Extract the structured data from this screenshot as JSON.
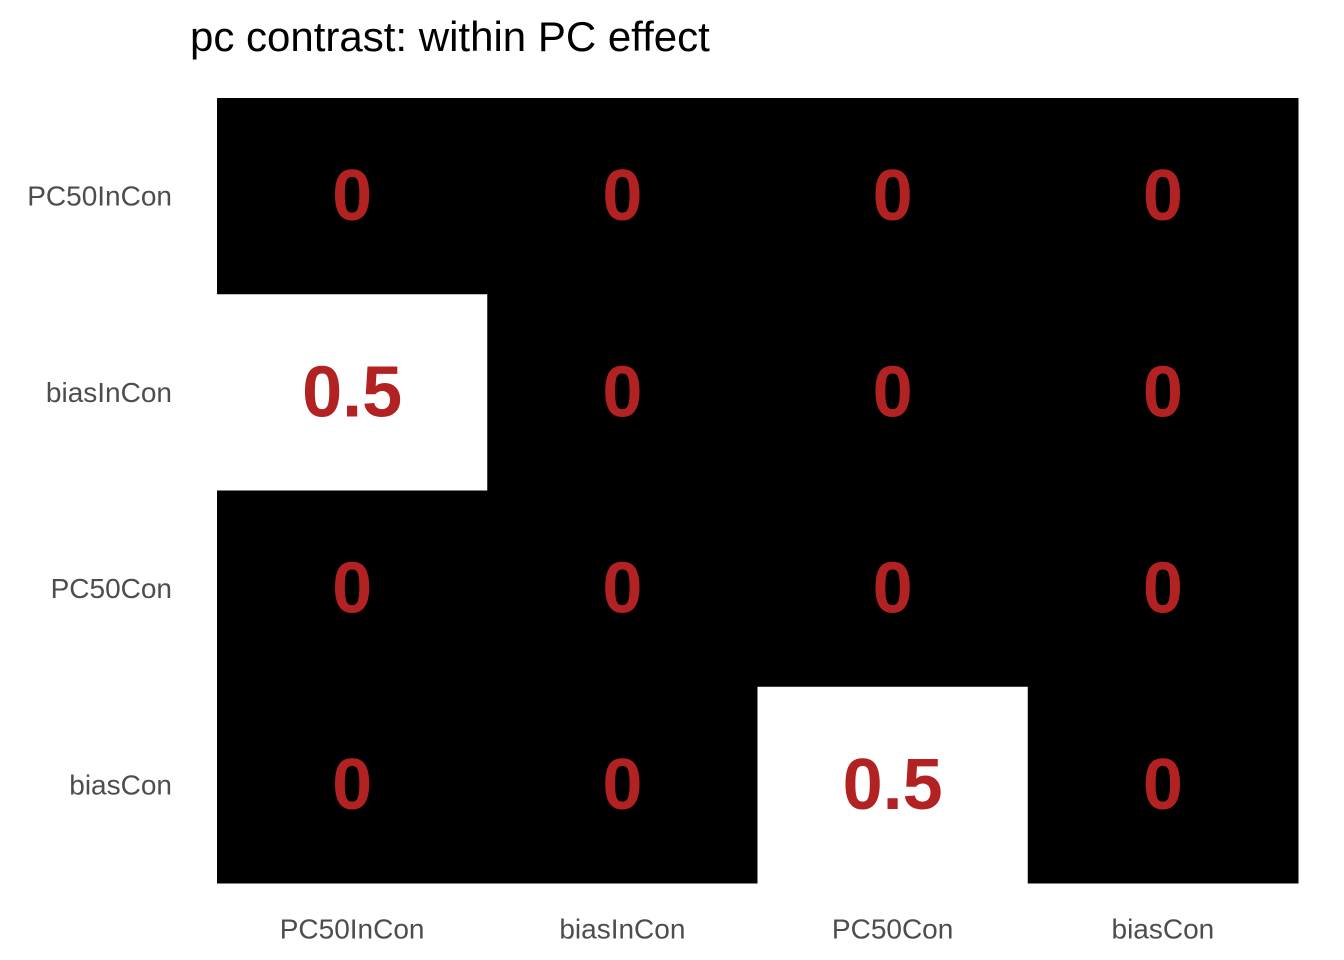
{
  "chart_data": {
    "type": "heatmap",
    "title": "pc contrast: within PC effect",
    "xlabel": "",
    "ylabel": "",
    "x_categories": [
      "PC50InCon",
      "biasInCon",
      "PC50Con",
      "biasCon"
    ],
    "y_categories": [
      "PC50InCon",
      "biasInCon",
      "PC50Con",
      "biasCon"
    ],
    "values": [
      [
        0,
        0,
        0,
        0
      ],
      [
        0.5,
        0,
        0,
        0
      ],
      [
        0,
        0,
        0,
        0
      ],
      [
        0,
        0,
        0.5,
        0
      ]
    ],
    "labels": [
      [
        "0",
        "0",
        "0",
        "0"
      ],
      [
        "0.5",
        "0",
        "0",
        "0"
      ],
      [
        "0",
        "0",
        "0",
        "0"
      ],
      [
        "0",
        "0",
        "0.5",
        "0"
      ]
    ],
    "color_low": "#000000",
    "color_high": "#ffffff",
    "label_color": "#b22222",
    "value_range": [
      0,
      0.5
    ],
    "grid": false,
    "legend": "none"
  }
}
